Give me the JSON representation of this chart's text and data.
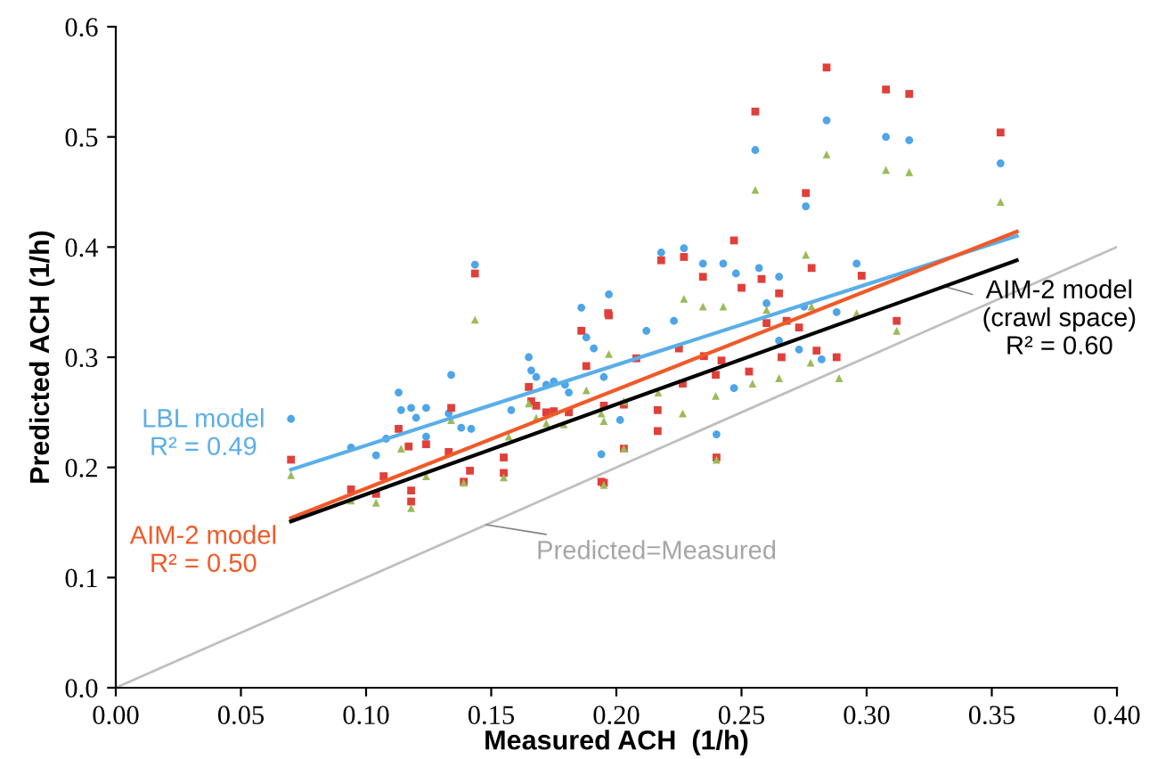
{
  "chart_data": {
    "type": "scatter",
    "xlabel": "Measured ACH  (1/h)",
    "ylabel": "Predicted ACH (1/h)",
    "xlim": [
      0,
      0.4
    ],
    "ylim": [
      0,
      0.6
    ],
    "xticks": [
      {
        "value": 0,
        "label": "0.00"
      },
      {
        "value": 0.05,
        "label": "0.05"
      },
      {
        "value": 0.1,
        "label": "0.10"
      },
      {
        "value": 0.15,
        "label": "0.15"
      },
      {
        "value": 0.2,
        "label": "0.20"
      },
      {
        "value": 0.25,
        "label": "0.25"
      },
      {
        "value": 0.3,
        "label": "0.30"
      },
      {
        "value": 0.35,
        "label": "0.35"
      },
      {
        "value": 0.4,
        "label": "0.40"
      }
    ],
    "yticks": [
      {
        "value": 0,
        "label": "0.0"
      },
      {
        "value": 0.1,
        "label": "0.1"
      },
      {
        "value": 0.2,
        "label": "0.2"
      },
      {
        "value": 0.3,
        "label": "0.3"
      },
      {
        "value": 0.4,
        "label": "0.4"
      },
      {
        "value": 0.5,
        "label": "0.5"
      },
      {
        "value": 0.6,
        "label": "0.6"
      }
    ],
    "grid": false,
    "legend": false,
    "series": [
      {
        "color": "#4ea5e8",
        "marker": "circle",
        "x": [
          0.07,
          0.094,
          0.104,
          0.113,
          0.114,
          0.118,
          0.108,
          0.12,
          0.124,
          0.124,
          0.134,
          0.133,
          0.138,
          0.142,
          0.1435,
          0.158,
          0.165,
          0.166,
          0.168,
          0.172,
          0.175,
          0.1795,
          0.181,
          0.186,
          0.188,
          0.191,
          0.195,
          0.197,
          0.194,
          0.2015,
          0.2555,
          0.2757,
          0.284,
          0.3077,
          0.317,
          0.3535,
          0.2179,
          0.227,
          0.2346,
          0.2427,
          0.2478,
          0.257,
          0.265,
          0.296,
          0.212,
          0.223,
          0.24,
          0.26,
          0.275,
          0.288,
          0.247,
          0.265,
          0.273,
          0.282
        ],
        "values": [
          0.244,
          0.218,
          0.211,
          0.268,
          0.252,
          0.254,
          0.226,
          0.245,
          0.254,
          0.228,
          0.284,
          0.249,
          0.236,
          0.235,
          0.384,
          0.252,
          0.3,
          0.288,
          0.282,
          0.275,
          0.278,
          0.275,
          0.268,
          0.345,
          0.318,
          0.308,
          0.282,
          0.357,
          0.212,
          0.243,
          0.488,
          0.437,
          0.515,
          0.5,
          0.497,
          0.476,
          0.395,
          0.399,
          0.385,
          0.385,
          0.376,
          0.381,
          0.373,
          0.385,
          0.324,
          0.333,
          0.23,
          0.349,
          0.346,
          0.341,
          0.272,
          0.315,
          0.307,
          0.298
        ]
      },
      {
        "color": "#e0403a",
        "marker": "square",
        "x": [
          0.07,
          0.094,
          0.104,
          0.107,
          0.113,
          0.117,
          0.124,
          0.118,
          0.118,
          0.134,
          0.133,
          0.1415,
          0.139,
          0.1435,
          0.155,
          0.155,
          0.165,
          0.166,
          0.168,
          0.172,
          0.175,
          0.181,
          0.186,
          0.188,
          0.195,
          0.197,
          0.195,
          0.284,
          0.3077,
          0.317,
          0.3535,
          0.2555,
          0.2757,
          0.2179,
          0.227,
          0.2346,
          0.247,
          0.25,
          0.258,
          0.265,
          0.278,
          0.298,
          0.1967,
          0.208,
          0.225,
          0.235,
          0.242,
          0.26,
          0.268,
          0.273,
          0.312,
          0.203,
          0.2165,
          0.2265,
          0.2397,
          0.253,
          0.266,
          0.28,
          0.288,
          0.2165,
          0.203,
          0.24,
          0.194
        ],
        "values": [
          0.207,
          0.18,
          0.176,
          0.192,
          0.235,
          0.219,
          0.221,
          0.179,
          0.169,
          0.254,
          0.214,
          0.197,
          0.187,
          0.376,
          0.209,
          0.195,
          0.273,
          0.26,
          0.256,
          0.25,
          0.251,
          0.25,
          0.324,
          0.292,
          0.186,
          0.338,
          0.256,
          0.563,
          0.543,
          0.539,
          0.504,
          0.523,
          0.449,
          0.388,
          0.391,
          0.373,
          0.406,
          0.363,
          0.371,
          0.358,
          0.381,
          0.374,
          0.34,
          0.299,
          0.308,
          0.301,
          0.297,
          0.331,
          0.333,
          0.327,
          0.333,
          0.257,
          0.252,
          0.276,
          0.284,
          0.287,
          0.3,
          0.306,
          0.3,
          0.233,
          0.217,
          0.209,
          0.187
        ]
      },
      {
        "color": "#9bbb59",
        "marker": "triangle",
        "x": [
          0.07,
          0.094,
          0.104,
          0.114,
          0.118,
          0.124,
          0.134,
          0.139,
          0.1435,
          0.155,
          0.157,
          0.165,
          0.168,
          0.172,
          0.179,
          0.188,
          0.195,
          0.197,
          0.195,
          0.2555,
          0.284,
          0.3077,
          0.317,
          0.3535,
          0.2757,
          0.227,
          0.2346,
          0.2427,
          0.26,
          0.278,
          0.296,
          0.312,
          0.194,
          0.203,
          0.2167,
          0.2265,
          0.2397,
          0.2544,
          0.265,
          0.2776,
          0.289,
          0.24,
          0.203
        ],
        "values": [
          0.193,
          0.17,
          0.168,
          0.217,
          0.163,
          0.192,
          0.243,
          0.186,
          0.334,
          0.191,
          0.228,
          0.258,
          0.245,
          0.24,
          0.239,
          0.27,
          0.242,
          0.303,
          0.184,
          0.452,
          0.484,
          0.47,
          0.468,
          0.441,
          0.393,
          0.353,
          0.346,
          0.346,
          0.343,
          0.346,
          0.34,
          0.324,
          0.249,
          0.26,
          0.268,
          0.249,
          0.265,
          0.276,
          0.281,
          0.295,
          0.281,
          0.207,
          0.217
        ]
      },
      {
        "type": "line",
        "name": "LBL model\nR² = 0.49",
        "color": "#5aaee8",
        "x": [
          0.07,
          0.36
        ],
        "values": [
          0.198,
          0.41
        ]
      },
      {
        "type": "line",
        "name": "AIM-2 model\nR² = 0.50",
        "color": "#f05a28",
        "x": [
          0.07,
          0.36
        ],
        "values": [
          0.154,
          0.414
        ]
      },
      {
        "type": "line",
        "name": "AIM-2 model\n(crawl space)\nR² = 0.60",
        "color": "#000000",
        "x": [
          0.07,
          0.36
        ],
        "values": [
          0.151,
          0.388
        ]
      },
      {
        "type": "line",
        "name": "Predicted=Measured",
        "color": "#bfbfbf",
        "x": [
          0,
          0.4
        ],
        "values": [
          0,
          0.4
        ]
      }
    ]
  }
}
